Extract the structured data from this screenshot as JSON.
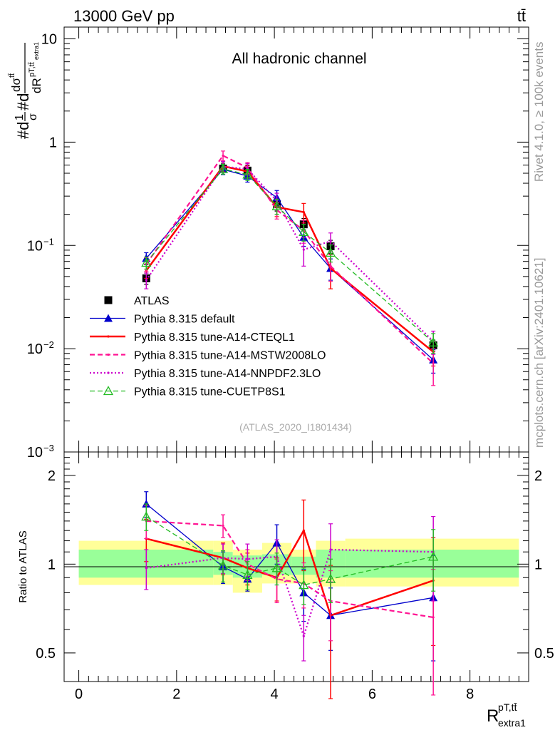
{
  "header": {
    "energy_label": "13000 GeV pp",
    "process_label": "tt̄"
  },
  "side_labels": {
    "rivet": "Rivet 4.1.0, ≥ 100k events",
    "mcplots": "mcplots.cern.ch [arXiv:2401.10621]"
  },
  "chart_data": [
    {
      "type": "line",
      "panel": "main",
      "title": "All hadronic channel",
      "ylabel": "#d 1/σ #d dσ^{tt̄} / dR^{pT,tt̄}_{extra1}",
      "xlabel": "",
      "yscale": "log",
      "xlim": [
        -0.3,
        9.2
      ],
      "ylim": [
        0.001,
        13
      ],
      "y_ticks": [
        {
          "value": 10,
          "base": "10",
          "exp": ""
        },
        {
          "value": 1,
          "base": "1",
          "exp": ""
        },
        {
          "value": 0.1,
          "base": "10",
          "exp": "−1"
        },
        {
          "value": 0.01,
          "base": "10",
          "exp": "−2"
        },
        {
          "value": 0.001,
          "base": "10",
          "exp": "−3"
        }
      ],
      "watermark": "(ATLAS_2020_I1801434)",
      "x": [
        1.38,
        2.95,
        3.45,
        4.05,
        4.6,
        5.15,
        7.25
      ],
      "series": [
        {
          "name": "ATLAS",
          "color": "#000000",
          "style": "marker-square",
          "values": [
            0.048,
            0.555,
            0.53,
            0.25,
            0.16,
            0.098,
            0.0108
          ],
          "err": [
            0.006,
            0.07,
            0.07,
            0.035,
            0.022,
            0.014,
            0.0013
          ]
        },
        {
          "name": "Pythia 8.315 default",
          "color": "#0000cc",
          "style": "solid-triangle",
          "values": [
            0.075,
            0.545,
            0.47,
            0.29,
            0.12,
            0.06,
            0.0078
          ],
          "err": [
            0.01,
            0.06,
            0.06,
            0.05,
            0.022,
            0.014,
            0.002
          ]
        },
        {
          "name": "Pythia 8.315 tune-A14-CTEQL1",
          "color": "#ff0000",
          "style": "solid-thick",
          "values": [
            0.057,
            0.585,
            0.52,
            0.235,
            0.21,
            0.06,
            0.0093
          ],
          "err": [
            0.009,
            0.07,
            0.07,
            0.045,
            0.045,
            0.022,
            0.0025
          ]
        },
        {
          "name": "Pythia 8.315 tune-A14-MSTW2008LO",
          "color": "#ff1493",
          "style": "dashed",
          "values": [
            0.066,
            0.74,
            0.565,
            0.22,
            0.14,
            0.063,
            0.0072
          ],
          "err": [
            0.01,
            0.08,
            0.07,
            0.04,
            0.035,
            0.018,
            0.0028
          ]
        },
        {
          "name": "Pythia 8.315 tune-A14-NNPDF2.3LO",
          "color": "#cc00cc",
          "style": "dotted",
          "values": [
            0.046,
            0.58,
            0.55,
            0.27,
            0.091,
            0.11,
            0.0118
          ],
          "err": [
            0.008,
            0.07,
            0.07,
            0.05,
            0.028,
            0.022,
            0.003
          ]
        },
        {
          "name": "Pythia 8.315 tune-CUETP8S1",
          "color": "#22bb22",
          "style": "dashed-open-triangle",
          "values": [
            0.068,
            0.55,
            0.485,
            0.24,
            0.135,
            0.085,
            0.0115
          ],
          "err": [
            0.009,
            0.06,
            0.06,
            0.04,
            0.025,
            0.016,
            0.0025
          ]
        }
      ]
    },
    {
      "type": "line",
      "panel": "ratio",
      "ylabel": "Ratio to ATLAS",
      "xlabel": "R^{pT,tt̄}_{extra1}",
      "xlim": [
        -0.3,
        9.2
      ],
      "ylim": [
        0.4,
        2.4
      ],
      "x_ticks": [
        0,
        2,
        4,
        6,
        8
      ],
      "y_ticks": [
        {
          "value": 2,
          "label": "2"
        },
        {
          "value": 1,
          "label": "1"
        },
        {
          "value": 0.5,
          "label": "0.5"
        }
      ],
      "bin_edges": [
        0,
        2.75,
        3.15,
        3.75,
        4.35,
        4.85,
        5.45,
        9.0
      ],
      "band_yellow": [
        [
          0.85,
          1.2
        ],
        [
          0.85,
          1.2
        ],
        [
          0.8,
          1.12
        ],
        [
          0.86,
          1.18
        ],
        [
          0.86,
          1.12
        ],
        [
          0.84,
          1.2
        ],
        [
          0.84,
          1.22
        ]
      ],
      "band_green": [
        [
          0.9,
          1.12
        ],
        [
          0.92,
          1.1
        ],
        [
          0.9,
          1.07
        ],
        [
          0.92,
          1.08
        ],
        [
          0.92,
          1.06
        ],
        [
          0.9,
          1.12
        ],
        [
          0.9,
          1.12
        ]
      ],
      "x": [
        1.38,
        2.95,
        3.45,
        4.05,
        4.6,
        5.15,
        7.25
      ],
      "series": [
        {
          "name": "Pythia 8.315 default",
          "color": "#0000cc",
          "style": "solid-triangle",
          "values": [
            1.6,
            0.98,
            0.89,
            1.18,
            0.8,
            0.67,
            0.77
          ],
          "err": [
            0.16,
            0.12,
            0.08,
            0.18,
            0.16,
            0.16,
            0.3
          ]
        },
        {
          "name": "Pythia 8.315 tune-A14-CTEQL1",
          "color": "#ff0000",
          "style": "solid-thick",
          "values": [
            1.22,
            1.05,
            0.97,
            0.9,
            1.3,
            0.67,
            0.88
          ],
          "err": [
            0.2,
            0.13,
            0.12,
            0.15,
            0.35,
            0.32,
            0.35
          ]
        },
        {
          "name": "Pythia 8.315 tune-A14-MSTW2008LO",
          "color": "#ff1493",
          "style": "dashed",
          "values": [
            1.4,
            1.35,
            1.0,
            0.89,
            0.86,
            0.75,
            0.66
          ],
          "err": [
            0.18,
            0.12,
            0.12,
            0.15,
            0.15,
            0.2,
            0.3
          ]
        },
        {
          "name": "Pythia 8.315 tune-A14-NNPDF2.3LO",
          "color": "#cc00cc",
          "style": "dotted",
          "values": [
            0.97,
            1.05,
            1.04,
            1.06,
            0.57,
            1.12,
            1.1
          ],
          "err": [
            0.15,
            0.12,
            0.13,
            0.15,
            0.1,
            0.25,
            0.35
          ]
        },
        {
          "name": "Pythia 8.315 tune-CUETP8S1",
          "color": "#22bb22",
          "style": "dashed-open-triangle",
          "values": [
            1.45,
            0.99,
            0.92,
            0.97,
            0.85,
            0.89,
            1.06
          ],
          "err": [
            0.15,
            0.12,
            0.1,
            0.12,
            0.12,
            0.15,
            0.25
          ]
        }
      ]
    }
  ]
}
